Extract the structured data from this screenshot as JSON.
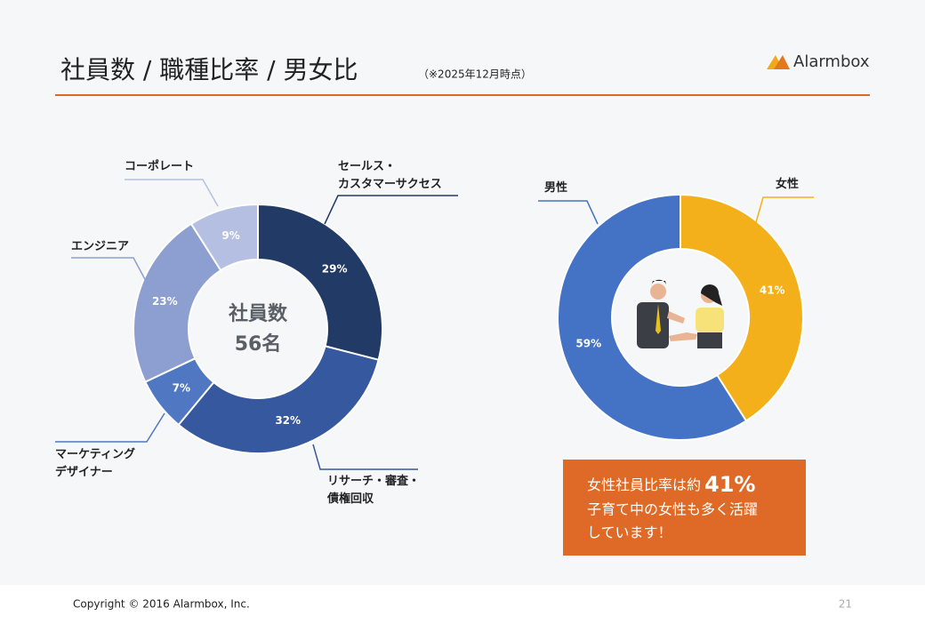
{
  "header": {
    "title": "社員数 / 職種比率 / 男女比",
    "note": "（※2025年12月時点）",
    "logo": "Alarmbox"
  },
  "chart_data": [
    {
      "type": "donut",
      "center_text": [
        "社員数",
        "56名"
      ],
      "categories": [
        "セールス・\nカスタマーサクセス",
        "リサーチ・審査・\n債権回収",
        "マーケティング\nデザイナー",
        "エンジニア",
        "コーポレート"
      ],
      "values": [
        29,
        32,
        7,
        23,
        9
      ],
      "value_labels": [
        "29%",
        "32%",
        "7%",
        "23%",
        "9%"
      ],
      "colors": [
        "#213a66",
        "#35589e",
        "#4f77c2",
        "#8d9fd1",
        "#b5bfe1"
      ]
    },
    {
      "type": "donut",
      "categories": [
        "女性",
        "男性"
      ],
      "values": [
        41,
        59
      ],
      "value_labels": [
        "41%",
        "59%"
      ],
      "colors": [
        "#f3b01b",
        "#4472c4"
      ]
    }
  ],
  "callout": {
    "lead": "女性社員比率は約",
    "emph": "41%",
    "lines": [
      "子育て中の女性も多く活躍",
      "しています！"
    ]
  },
  "footer": {
    "copyright": "Copyright © 2016 Alarmbox, Inc.",
    "page": "21"
  }
}
